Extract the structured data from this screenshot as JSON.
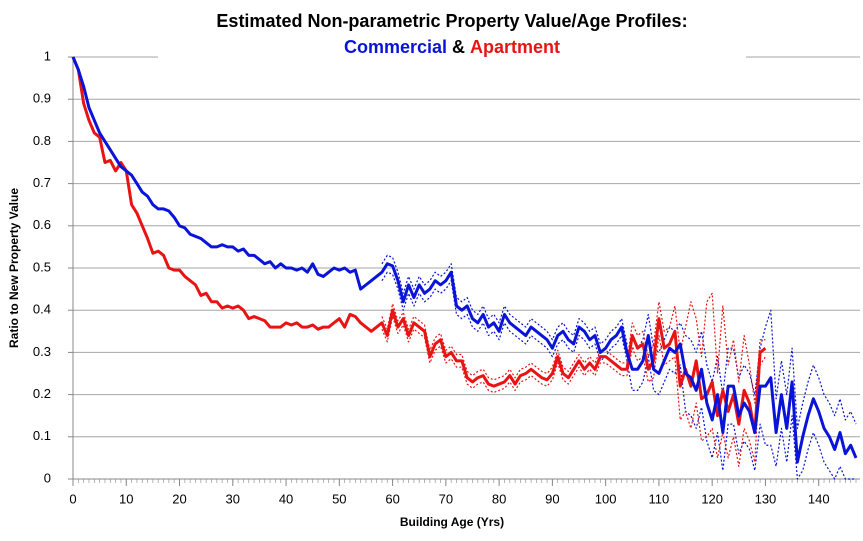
{
  "chart_data": {
    "type": "line",
    "title": "Estimated Non-parametric Property Value/Age Profiles:",
    "title_connector": "&",
    "x_label": "Building Age (Yrs)",
    "y_label": "Ratio to New Property Value",
    "xlim": [
      0,
      147
    ],
    "xticks": [
      0,
      10,
      20,
      30,
      40,
      50,
      60,
      70,
      80,
      90,
      100,
      110,
      120,
      130,
      140
    ],
    "ylim": [
      0,
      1
    ],
    "yticks": [
      0,
      0.1,
      0.2,
      0.3,
      0.4,
      0.5,
      0.6,
      0.7,
      0.8,
      0.9,
      1
    ],
    "grid": true,
    "x": [
      0,
      1,
      2,
      3,
      4,
      5,
      6,
      7,
      8,
      9,
      10,
      11,
      12,
      13,
      14,
      15,
      16,
      17,
      18,
      19,
      20,
      21,
      22,
      23,
      24,
      25,
      26,
      27,
      28,
      29,
      30,
      31,
      32,
      33,
      34,
      35,
      36,
      37,
      38,
      39,
      40,
      41,
      42,
      43,
      44,
      45,
      46,
      47,
      48,
      49,
      50,
      51,
      52,
      53,
      54,
      55,
      56,
      57,
      58,
      59,
      60,
      61,
      62,
      63,
      64,
      65,
      66,
      67,
      68,
      69,
      70,
      71,
      72,
      73,
      74,
      75,
      76,
      77,
      78,
      79,
      80,
      81,
      82,
      83,
      84,
      85,
      86,
      87,
      88,
      89,
      90,
      91,
      92,
      93,
      94,
      95,
      96,
      97,
      98,
      99,
      100,
      101,
      102,
      103,
      104,
      105,
      106,
      107,
      108,
      109,
      110,
      111,
      112,
      113,
      114,
      115,
      116,
      117,
      118,
      119,
      120,
      121,
      122,
      123,
      124,
      125,
      126,
      127,
      128,
      129,
      130,
      131,
      132,
      133,
      134,
      135,
      136,
      137,
      138,
      139,
      140,
      141,
      142,
      143,
      144,
      145,
      146,
      147
    ],
    "series": [
      {
        "name": "Commercial",
        "color": "#0a14d8",
        "values": [
          1,
          0.97,
          0.93,
          0.88,
          0.85,
          0.82,
          0.8,
          0.78,
          0.76,
          0.74,
          0.73,
          0.72,
          0.7,
          0.68,
          0.67,
          0.65,
          0.64,
          0.64,
          0.635,
          0.62,
          0.6,
          0.595,
          0.58,
          0.575,
          0.57,
          0.56,
          0.55,
          0.55,
          0.555,
          0.55,
          0.55,
          0.54,
          0.545,
          0.53,
          0.53,
          0.52,
          0.51,
          0.515,
          0.5,
          0.51,
          0.5,
          0.5,
          0.495,
          0.5,
          0.49,
          0.51,
          0.485,
          0.48,
          0.49,
          0.5,
          0.495,
          0.5,
          0.49,
          0.495,
          0.45,
          0.46,
          0.47,
          0.48,
          0.49,
          0.51,
          0.505,
          0.47,
          0.42,
          0.46,
          0.43,
          0.46,
          0.44,
          0.45,
          0.47,
          0.46,
          0.47,
          0.49,
          0.41,
          0.4,
          0.41,
          0.38,
          0.37,
          0.39,
          0.36,
          0.37,
          0.35,
          0.39,
          0.37,
          0.36,
          0.35,
          0.34,
          0.36,
          0.35,
          0.34,
          0.33,
          0.31,
          0.34,
          0.35,
          0.33,
          0.32,
          0.36,
          0.35,
          0.33,
          0.34,
          0.3,
          0.31,
          0.33,
          0.34,
          0.36,
          0.3,
          0.26,
          0.26,
          0.28,
          0.34,
          0.26,
          0.25,
          0.28,
          0.31,
          0.3,
          0.32,
          0.25,
          0.24,
          0.21,
          0.26,
          0.18,
          0.14,
          0.2,
          0.11,
          0.22,
          0.22,
          0.15,
          0.18,
          0.16,
          0.11,
          0.22,
          0.22,
          0.24,
          0.11,
          0.2,
          0.12,
          0.23,
          0.04,
          0.1,
          0.15,
          0.19,
          0.16,
          0.12,
          0.1,
          0.07,
          0.11,
          0.06,
          0.08,
          0.05
        ],
        "upper": [
          null,
          null,
          null,
          null,
          null,
          null,
          null,
          null,
          null,
          null,
          null,
          null,
          null,
          null,
          null,
          null,
          null,
          null,
          null,
          null,
          null,
          null,
          null,
          null,
          null,
          null,
          null,
          null,
          null,
          null,
          null,
          null,
          null,
          null,
          null,
          null,
          null,
          null,
          null,
          null,
          null,
          null,
          null,
          null,
          null,
          null,
          null,
          null,
          null,
          null,
          null,
          null,
          null,
          null,
          null,
          null,
          null,
          null,
          0.51,
          0.53,
          0.525,
          0.49,
          0.44,
          0.48,
          0.45,
          0.48,
          0.46,
          0.47,
          0.49,
          0.48,
          0.49,
          0.51,
          0.43,
          0.42,
          0.43,
          0.4,
          0.39,
          0.41,
          0.38,
          0.39,
          0.37,
          0.41,
          0.39,
          0.38,
          0.37,
          0.36,
          0.38,
          0.37,
          0.36,
          0.35,
          0.33,
          0.36,
          0.37,
          0.35,
          0.34,
          0.38,
          0.37,
          0.35,
          0.36,
          0.32,
          0.33,
          0.35,
          0.36,
          0.38,
          0.32,
          0.31,
          0.31,
          0.33,
          0.39,
          0.31,
          0.3,
          0.33,
          0.36,
          0.35,
          0.37,
          0.34,
          0.33,
          0.3,
          0.35,
          0.27,
          0.23,
          0.29,
          0.2,
          0.31,
          0.31,
          0.24,
          0.27,
          0.25,
          0.2,
          0.31,
          0.36,
          0.4,
          0.19,
          0.28,
          0.2,
          0.31,
          0.12,
          0.18,
          0.23,
          0.27,
          0.24,
          0.2,
          0.18,
          0.15,
          0.19,
          0.14,
          0.16,
          0.13
        ],
        "lower": [
          null,
          null,
          null,
          null,
          null,
          null,
          null,
          null,
          null,
          null,
          null,
          null,
          null,
          null,
          null,
          null,
          null,
          null,
          null,
          null,
          null,
          null,
          null,
          null,
          null,
          null,
          null,
          null,
          null,
          null,
          null,
          null,
          null,
          null,
          null,
          null,
          null,
          null,
          null,
          null,
          null,
          null,
          null,
          null,
          null,
          null,
          null,
          null,
          null,
          null,
          null,
          null,
          null,
          null,
          null,
          null,
          null,
          null,
          0.47,
          0.49,
          0.485,
          0.45,
          0.4,
          0.44,
          0.41,
          0.44,
          0.42,
          0.43,
          0.45,
          0.44,
          0.45,
          0.47,
          0.39,
          0.38,
          0.39,
          0.36,
          0.35,
          0.37,
          0.34,
          0.35,
          0.33,
          0.37,
          0.35,
          0.34,
          0.33,
          0.32,
          0.34,
          0.33,
          0.32,
          0.31,
          0.29,
          0.32,
          0.33,
          0.31,
          0.3,
          0.34,
          0.33,
          0.31,
          0.32,
          0.28,
          0.29,
          0.31,
          0.32,
          0.34,
          0.28,
          0.21,
          0.21,
          0.23,
          0.29,
          0.21,
          0.2,
          0.23,
          0.26,
          0.25,
          0.27,
          0.16,
          0.15,
          0.12,
          0.17,
          0.09,
          0.05,
          0.11,
          0.02,
          0.13,
          0.13,
          0.06,
          0.09,
          0.07,
          0.02,
          0.13,
          0.08,
          0.08,
          0.03,
          0.12,
          0.04,
          0.15,
          0,
          0.02,
          0.07,
          0.11,
          0.08,
          0.04,
          0.02,
          0,
          0.03,
          0,
          0,
          0
        ]
      },
      {
        "name": "Apartment",
        "color": "#e81414",
        "values": [
          1,
          0.97,
          0.89,
          0.85,
          0.82,
          0.81,
          0.75,
          0.755,
          0.73,
          0.75,
          0.73,
          0.65,
          0.63,
          0.6,
          0.57,
          0.535,
          0.54,
          0.53,
          0.5,
          0.495,
          0.495,
          0.48,
          0.47,
          0.46,
          0.435,
          0.44,
          0.42,
          0.42,
          0.405,
          0.41,
          0.405,
          0.41,
          0.4,
          0.38,
          0.385,
          0.38,
          0.375,
          0.36,
          0.36,
          0.36,
          0.37,
          0.365,
          0.37,
          0.36,
          0.36,
          0.365,
          0.355,
          0.36,
          0.36,
          0.37,
          0.38,
          0.36,
          0.39,
          0.385,
          0.37,
          0.36,
          0.35,
          0.36,
          0.37,
          0.34,
          0.4,
          0.36,
          0.38,
          0.34,
          0.37,
          0.36,
          0.35,
          0.29,
          0.32,
          0.33,
          0.29,
          0.3,
          0.28,
          0.28,
          0.24,
          0.23,
          0.24,
          0.245,
          0.225,
          0.22,
          0.225,
          0.23,
          0.245,
          0.225,
          0.245,
          0.25,
          0.26,
          0.25,
          0.24,
          0.235,
          0.25,
          0.29,
          0.25,
          0.24,
          0.26,
          0.28,
          0.26,
          0.275,
          0.26,
          0.29,
          0.29,
          0.28,
          0.27,
          0.26,
          0.26,
          0.34,
          0.31,
          0.32,
          0.26,
          0.28,
          0.38,
          0.31,
          0.32,
          0.35,
          0.22,
          0.26,
          0.22,
          0.28,
          0.19,
          0.2,
          0.23,
          0.15,
          0.21,
          0.16,
          0.2,
          0.13,
          0.21,
          0.18,
          0.11,
          0.3,
          0.31,
          null,
          null,
          null,
          null,
          null,
          null,
          null,
          null,
          null,
          null,
          null,
          null,
          null,
          null,
          null,
          null,
          null
        ],
        "upper": [
          null,
          null,
          null,
          null,
          null,
          null,
          null,
          null,
          null,
          null,
          null,
          null,
          null,
          null,
          null,
          null,
          null,
          null,
          null,
          null,
          null,
          null,
          null,
          null,
          null,
          null,
          null,
          null,
          null,
          null,
          null,
          null,
          null,
          null,
          null,
          null,
          null,
          null,
          null,
          null,
          null,
          null,
          null,
          null,
          null,
          null,
          null,
          null,
          null,
          null,
          null,
          null,
          null,
          null,
          null,
          null,
          null,
          null,
          0.385,
          0.355,
          0.415,
          0.375,
          0.395,
          0.355,
          0.385,
          0.375,
          0.365,
          0.305,
          0.335,
          0.345,
          0.305,
          0.315,
          0.295,
          0.295,
          0.255,
          0.245,
          0.255,
          0.26,
          0.24,
          0.235,
          0.24,
          0.245,
          0.26,
          0.24,
          0.26,
          0.265,
          0.275,
          0.265,
          0.255,
          0.25,
          0.265,
          0.305,
          0.265,
          0.255,
          0.275,
          0.295,
          0.275,
          0.29,
          0.275,
          0.305,
          0.305,
          0.295,
          0.285,
          0.275,
          0.275,
          0.37,
          0.34,
          0.35,
          0.29,
          0.32,
          0.42,
          0.35,
          0.36,
          0.41,
          0.3,
          0.36,
          0.42,
          0.38,
          0.29,
          0.42,
          0.44,
          0.25,
          0.41,
          0.27,
          0.33,
          0.23,
          0.34,
          0.27,
          0.18,
          0.33,
          0.33,
          null,
          null,
          null,
          null,
          null,
          null,
          null,
          null,
          null,
          null,
          null,
          null,
          null,
          null,
          null,
          null,
          null
        ],
        "lower": [
          null,
          null,
          null,
          null,
          null,
          null,
          null,
          null,
          null,
          null,
          null,
          null,
          null,
          null,
          null,
          null,
          null,
          null,
          null,
          null,
          null,
          null,
          null,
          null,
          null,
          null,
          null,
          null,
          null,
          null,
          null,
          null,
          null,
          null,
          null,
          null,
          null,
          null,
          null,
          null,
          null,
          null,
          null,
          null,
          null,
          null,
          null,
          null,
          null,
          null,
          null,
          null,
          null,
          null,
          null,
          null,
          null,
          null,
          0.355,
          0.325,
          0.385,
          0.345,
          0.365,
          0.325,
          0.355,
          0.345,
          0.335,
          0.275,
          0.305,
          0.315,
          0.275,
          0.285,
          0.265,
          0.265,
          0.225,
          0.215,
          0.225,
          0.23,
          0.21,
          0.205,
          0.21,
          0.215,
          0.23,
          0.21,
          0.23,
          0.235,
          0.245,
          0.235,
          0.225,
          0.22,
          0.235,
          0.275,
          0.235,
          0.225,
          0.245,
          0.265,
          0.245,
          0.26,
          0.245,
          0.275,
          0.275,
          0.265,
          0.255,
          0.245,
          0.245,
          0.31,
          0.28,
          0.29,
          0.23,
          0.24,
          0.34,
          0.27,
          0.28,
          0.29,
          0.14,
          0.16,
          0.12,
          0.18,
          0.09,
          0.1,
          0.12,
          0.05,
          0.11,
          0.05,
          0.1,
          0.03,
          0.12,
          0.09,
          0.04,
          0.27,
          0.29,
          null,
          null,
          null,
          null,
          null,
          null,
          null,
          null,
          null,
          null,
          null,
          null,
          null,
          null,
          null,
          null,
          null
        ]
      }
    ]
  }
}
